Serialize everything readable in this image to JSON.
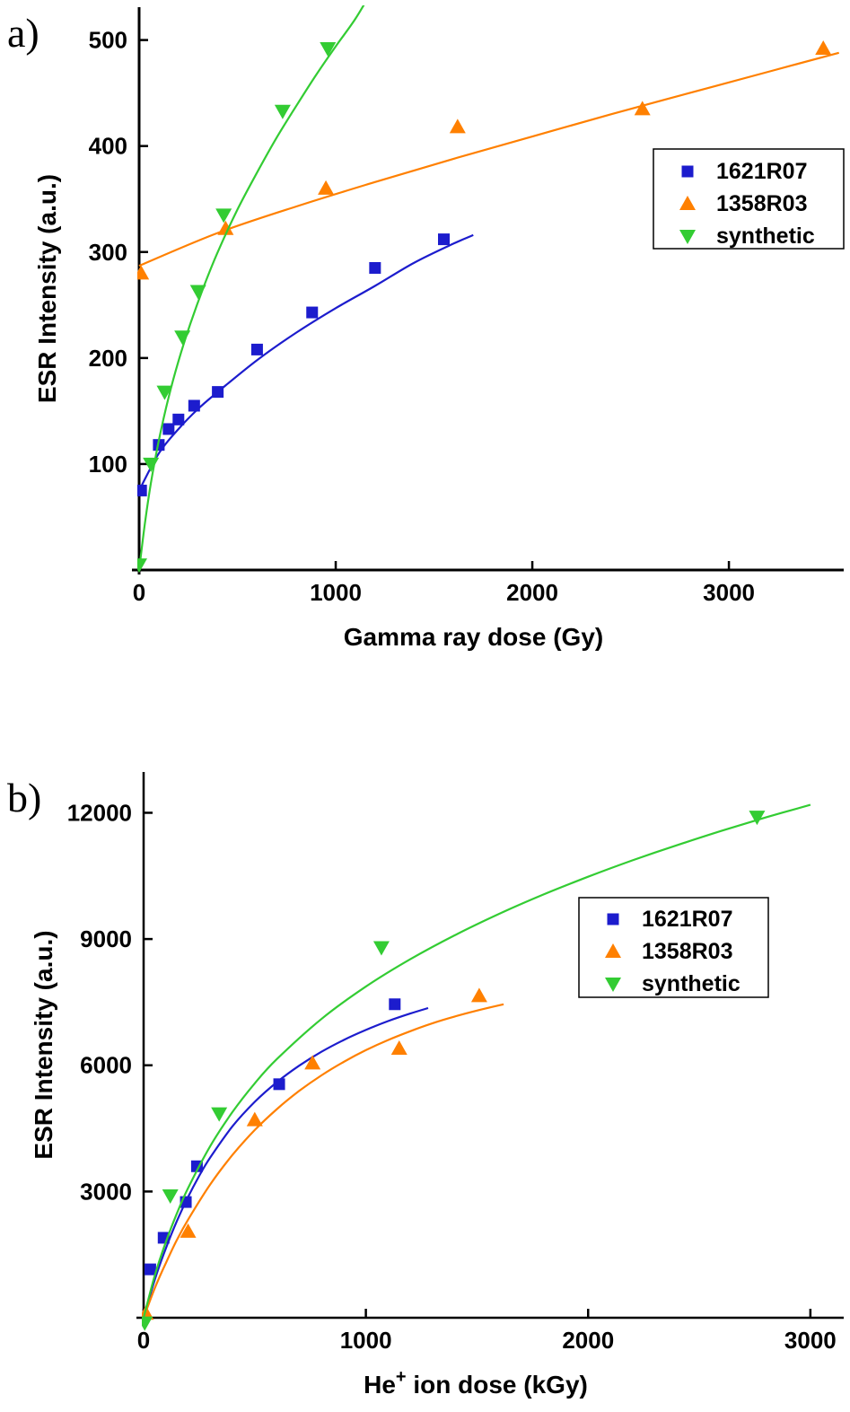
{
  "figure": {
    "panels": [
      {
        "label": "a)"
      },
      {
        "label": "b)"
      }
    ]
  },
  "chart_data": [
    {
      "type": "scatter",
      "panel_label": "a)",
      "title": "",
      "xlabel": "Gamma ray dose (Gy)",
      "ylabel": "ESR Intensity (a.u.)",
      "xlim": [
        0,
        3584
      ],
      "ylim": [
        0,
        531
      ],
      "xticks": [
        0,
        1000,
        2000,
        3000
      ],
      "yticks": [
        100,
        200,
        300,
        400,
        500
      ],
      "grid": false,
      "legend_position": "upper right",
      "series": [
        {
          "name": "1621R07",
          "color": "#1c1ccd",
          "marker": "square",
          "points": [
            [
              10,
              75
            ],
            [
              100,
              118
            ],
            [
              150,
              133
            ],
            [
              200,
              142
            ],
            [
              280,
              155
            ],
            [
              400,
              168
            ],
            [
              600,
              208
            ],
            [
              880,
              243
            ],
            [
              1200,
              285
            ],
            [
              1550,
              312
            ]
          ],
          "trend": [
            [
              0,
              75
            ],
            [
              100,
              110
            ],
            [
              200,
              133
            ],
            [
              300,
              152
            ],
            [
              400,
              168
            ],
            [
              600,
              198
            ],
            [
              800,
              224
            ],
            [
              1000,
              247
            ],
            [
              1200,
              268
            ],
            [
              1400,
              290
            ],
            [
              1600,
              308
            ],
            [
              1700,
              316
            ]
          ]
        },
        {
          "name": "1358R03",
          "color": "#ff8000",
          "marker": "triangle-up",
          "points": [
            [
              10,
              280
            ],
            [
              440,
              322
            ],
            [
              950,
              360
            ],
            [
              1620,
              418
            ],
            [
              2560,
              435
            ],
            [
              3480,
              492
            ]
          ],
          "trend": [
            [
              0,
              287
            ],
            [
              400,
              318
            ],
            [
              800,
              343
            ],
            [
              1200,
              366
            ],
            [
              1600,
              388
            ],
            [
              2000,
              409
            ],
            [
              2400,
              430
            ],
            [
              2800,
              450
            ],
            [
              3200,
              470
            ],
            [
              3560,
              488
            ]
          ]
        },
        {
          "name": "synthetic",
          "color": "#33cc33",
          "marker": "triangle-down",
          "points": [
            [
              0,
              5
            ],
            [
              60,
              100
            ],
            [
              130,
              168
            ],
            [
              220,
              220
            ],
            [
              300,
              263
            ],
            [
              430,
              335
            ],
            [
              730,
              433
            ],
            [
              960,
              492
            ]
          ],
          "trend": [
            [
              0,
              0
            ],
            [
              30,
              45
            ],
            [
              60,
              82
            ],
            [
              100,
              122
            ],
            [
              150,
              163
            ],
            [
              200,
              197
            ],
            [
              260,
              232
            ],
            [
              330,
              268
            ],
            [
              400,
              300
            ],
            [
              500,
              340
            ],
            [
              600,
              375
            ],
            [
              700,
              408
            ],
            [
              800,
              438
            ],
            [
              900,
              467
            ],
            [
              1000,
              494
            ],
            [
              1100,
              520
            ],
            [
              1180,
              545
            ]
          ]
        }
      ]
    },
    {
      "type": "scatter",
      "panel_label": "b)",
      "title": "",
      "xlabel": "He+ ion dose (kGy)",
      "xlabel_parts": [
        {
          "t": "He"
        },
        {
          "t": "+",
          "sup": true
        },
        {
          "t": " ion dose (kGy)"
        }
      ],
      "ylabel": "ESR Intensity (a.u.)",
      "xlim": [
        0,
        3150
      ],
      "ylim": [
        0,
        12970
      ],
      "xticks": [
        0,
        1000,
        2000,
        3000
      ],
      "yticks": [
        3000,
        6000,
        9000,
        12000
      ],
      "grid": false,
      "legend_position": "upper right",
      "series": [
        {
          "name": "1621R07",
          "color": "#1c1ccd",
          "marker": "square",
          "points": [
            [
              30,
              1150
            ],
            [
              90,
              1900
            ],
            [
              190,
              2750
            ],
            [
              240,
              3600
            ],
            [
              610,
              5550
            ],
            [
              1130,
              7450
            ]
          ],
          "trend": [
            [
              0,
              0
            ],
            [
              50,
              900
            ],
            [
              100,
              1650
            ],
            [
              150,
              2300
            ],
            [
              200,
              2870
            ],
            [
              250,
              3370
            ],
            [
              300,
              3810
            ],
            [
              400,
              4550
            ],
            [
              500,
              5130
            ],
            [
              600,
              5600
            ],
            [
              700,
              5990
            ],
            [
              800,
              6320
            ],
            [
              900,
              6600
            ],
            [
              1000,
              6840
            ],
            [
              1100,
              7050
            ],
            [
              1200,
              7230
            ],
            [
              1280,
              7360
            ]
          ]
        },
        {
          "name": "1358R03",
          "color": "#ff8000",
          "marker": "triangle-up",
          "points": [
            [
              10,
              100
            ],
            [
              200,
              2050
            ],
            [
              500,
              4700
            ],
            [
              760,
              6050
            ],
            [
              1150,
              6400
            ],
            [
              1510,
              7650
            ]
          ],
          "trend": [
            [
              0,
              0
            ],
            [
              50,
              700
            ],
            [
              100,
              1300
            ],
            [
              150,
              1850
            ],
            [
              200,
              2330
            ],
            [
              300,
              3170
            ],
            [
              400,
              3870
            ],
            [
              500,
              4460
            ],
            [
              600,
              4960
            ],
            [
              700,
              5390
            ],
            [
              800,
              5760
            ],
            [
              900,
              6080
            ],
            [
              1000,
              6360
            ],
            [
              1100,
              6600
            ],
            [
              1200,
              6810
            ],
            [
              1300,
              7000
            ],
            [
              1400,
              7160
            ],
            [
              1500,
              7300
            ],
            [
              1620,
              7450
            ]
          ]
        },
        {
          "name": "synthetic",
          "color": "#33cc33",
          "marker": "triangle-down",
          "points": [
            [
              5,
              -120
            ],
            [
              120,
              2900
            ],
            [
              340,
              4850
            ],
            [
              1070,
              8800
            ],
            [
              2760,
              11900
            ]
          ],
          "trend": [
            [
              0,
              0
            ],
            [
              50,
              1000
            ],
            [
              100,
              1800
            ],
            [
              150,
              2480
            ],
            [
              200,
              3080
            ],
            [
              300,
              4080
            ],
            [
              400,
              4890
            ],
            [
              500,
              5570
            ],
            [
              600,
              6150
            ],
            [
              800,
              7100
            ],
            [
              1000,
              7870
            ],
            [
              1200,
              8520
            ],
            [
              1400,
              9090
            ],
            [
              1600,
              9600
            ],
            [
              1800,
              10060
            ],
            [
              2000,
              10480
            ],
            [
              2200,
              10870
            ],
            [
              2400,
              11230
            ],
            [
              2600,
              11570
            ],
            [
              2800,
              11890
            ],
            [
              3000,
              12190
            ]
          ]
        }
      ]
    }
  ]
}
